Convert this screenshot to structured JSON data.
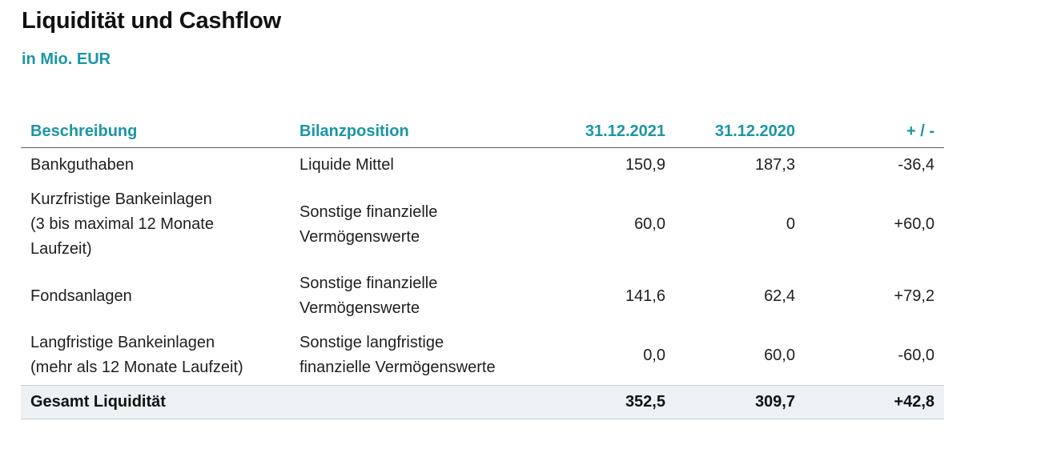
{
  "title": "Liquidität und Cashflow",
  "subtitle": "in Mio. EUR",
  "table": {
    "headers": [
      "Beschreibung",
      "Bilanzposition",
      "31.12.2021",
      "31.12.2020",
      "+ / -"
    ],
    "rows": [
      {
        "beschreibung": [
          "Bankguthaben"
        ],
        "bilanzposition": [
          "Liquide Mittel"
        ],
        "v2021": "150,9",
        "v2020": "187,3",
        "diff": "-36,4"
      },
      {
        "beschreibung": [
          "Kurzfristige Bankeinlagen",
          "(3 bis maximal 12 Monate",
          "Laufzeit)"
        ],
        "bilanzposition": [
          "Sonstige finanzielle",
          "Vermögenswerte"
        ],
        "v2021": "60,0",
        "v2020": "0",
        "diff": "+60,0"
      },
      {
        "beschreibung": [
          "Fondsanlagen"
        ],
        "bilanzposition": [
          "Sonstige finanzielle",
          "Vermögenswerte"
        ],
        "v2021": "141,6",
        "v2020": "62,4",
        "diff": "+79,2"
      },
      {
        "beschreibung": [
          "Langfristige Bankeinlagen",
          "(mehr als 12 Monate Laufzeit)"
        ],
        "bilanzposition": [
          "Sonstige langfristige",
          "finanzielle Vermögenswerte"
        ],
        "v2021": "0,0",
        "v2020": "60,0",
        "diff": "-60,0"
      }
    ],
    "total": {
      "label": "Gesamt Liquidität",
      "v2021": "352,5",
      "v2020": "309,7",
      "diff": "+42,8"
    }
  },
  "colors": {
    "accent": "#1a96a6",
    "total_row_bg": "#eef1f3",
    "text": "#1f1f1f"
  }
}
